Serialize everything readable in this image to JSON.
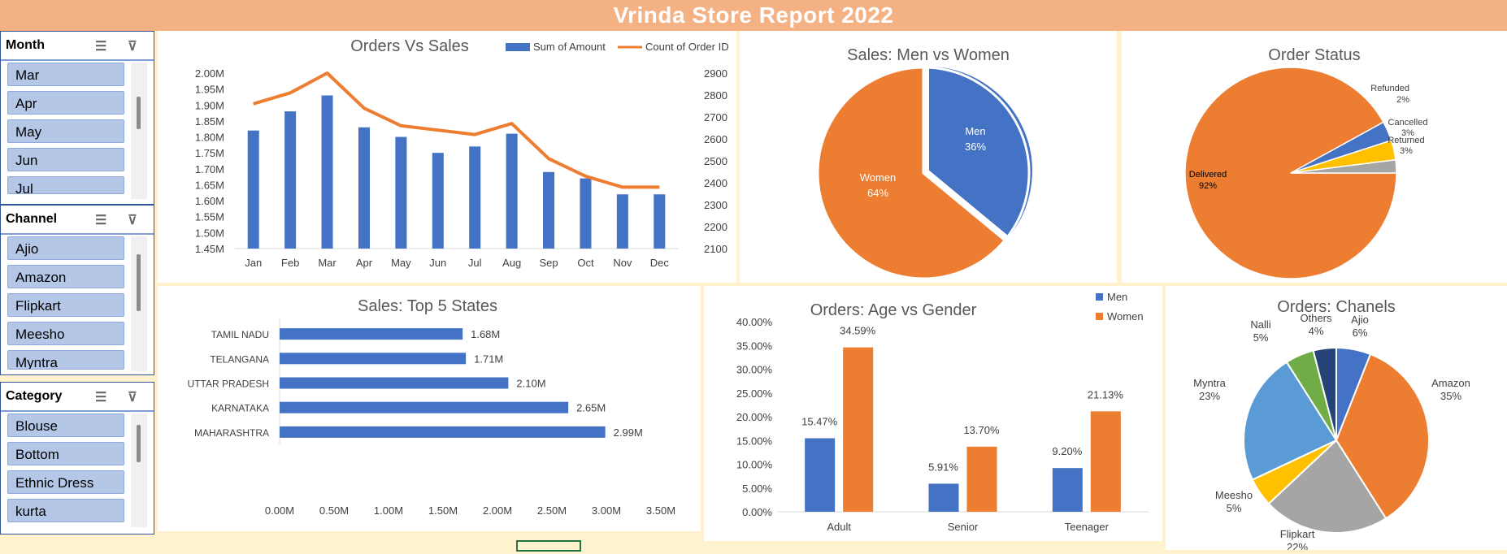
{
  "title": "Vrinda Store Report 2022",
  "slicers": [
    {
      "label": "Month",
      "items": [
        "Mar",
        "Apr",
        "May",
        "Jun",
        "Jul"
      ]
    },
    {
      "label": "Channel",
      "items": [
        "Ajio",
        "Amazon",
        "Flipkart",
        "Meesho",
        "Myntra"
      ]
    },
    {
      "label": "Category",
      "items": [
        "Blouse",
        "Bottom",
        "Ethnic Dress",
        "kurta"
      ]
    }
  ],
  "colors": {
    "blue": "#4472c4",
    "orange": "#ed7d31",
    "gray": "#a5a5a5",
    "yellow": "#ffc000",
    "lightblue": "#5b9bd5",
    "green": "#70ad47",
    "navy": "#264478"
  },
  "chart_data": [
    {
      "type": "bar",
      "title": "Orders Vs Sales",
      "categories": [
        "Jan",
        "Feb",
        "Mar",
        "Apr",
        "May",
        "Jun",
        "Jul",
        "Aug",
        "Sep",
        "Oct",
        "Nov",
        "Dec"
      ],
      "series": [
        {
          "name": "Sum of Amount",
          "type": "bar",
          "axis": "left",
          "values": [
            1.82,
            1.88,
            1.93,
            1.83,
            1.8,
            1.75,
            1.77,
            1.81,
            1.69,
            1.67,
            1.62,
            1.62
          ]
        },
        {
          "name": "Count of Order ID",
          "type": "line",
          "axis": "right",
          "values": [
            2760,
            2810,
            2900,
            2740,
            2660,
            2640,
            2620,
            2670,
            2510,
            2430,
            2380,
            2380
          ]
        }
      ],
      "y_left": {
        "range": [
          1.45,
          2.0
        ],
        "ticks": [
          "1.45M",
          "1.50M",
          "1.55M",
          "1.60M",
          "1.65M",
          "1.70M",
          "1.75M",
          "1.80M",
          "1.85M",
          "1.90M",
          "1.95M",
          "2.00M"
        ]
      },
      "y_right": {
        "range": [
          2100,
          2900
        ],
        "ticks": [
          "2100",
          "2200",
          "2300",
          "2400",
          "2500",
          "2600",
          "2700",
          "2800",
          "2900"
        ]
      },
      "legend": "top-right"
    },
    {
      "type": "pie",
      "title": "Sales: Men vs Women",
      "labels": [
        "Men",
        "Women"
      ],
      "values": [
        36,
        64
      ],
      "value_labels": [
        "36%",
        "64%"
      ]
    },
    {
      "type": "pie",
      "title": "Order Status",
      "labels": [
        "Delivered",
        "Returned",
        "Cancelled",
        "Refunded"
      ],
      "values": [
        92,
        3,
        3,
        2
      ],
      "value_labels": [
        "92%",
        "3%",
        "3%",
        "2%"
      ]
    },
    {
      "type": "bar",
      "orientation": "horizontal",
      "title": "Sales: Top 5 States",
      "categories": [
        "TAMIL NADU",
        "TELANGANA",
        "UTTAR PRADESH",
        "KARNATAKA",
        "MAHARASHTRA"
      ],
      "values": [
        1.68,
        1.71,
        2.1,
        2.65,
        2.99
      ],
      "value_labels": [
        "1.68M",
        "1.71M",
        "2.10M",
        "2.65M",
        "2.99M"
      ],
      "xlim": [
        0,
        3.5
      ],
      "x_ticks": [
        "0.00M",
        "0.50M",
        "1.00M",
        "1.50M",
        "2.00M",
        "2.50M",
        "3.00M",
        "3.50M"
      ]
    },
    {
      "type": "bar",
      "title": "Orders: Age vs Gender",
      "categories": [
        "Adult",
        "Senior",
        "Teenager"
      ],
      "series": [
        {
          "name": "Men",
          "values": [
            15.47,
            5.91,
            9.2
          ],
          "value_labels": [
            "15.47%",
            "5.91%",
            "9.20%"
          ]
        },
        {
          "name": "Women",
          "values": [
            34.59,
            13.7,
            21.13
          ],
          "value_labels": [
            "34.59%",
            "13.70%",
            "21.13%"
          ]
        }
      ],
      "ylim": [
        0,
        40
      ],
      "y_ticks": [
        "0.00%",
        "5.00%",
        "10.00%",
        "15.00%",
        "20.00%",
        "25.00%",
        "30.00%",
        "35.00%",
        "40.00%"
      ],
      "legend": "top-right"
    },
    {
      "type": "pie",
      "title": "Orders: Chanels",
      "labels": [
        "Ajio",
        "Amazon",
        "Flipkart",
        "Meesho",
        "Myntra",
        "Nalli",
        "Others"
      ],
      "values": [
        6,
        35,
        22,
        5,
        23,
        5,
        4
      ],
      "value_labels": [
        "6%",
        "35%",
        "22%",
        "5%",
        "23%",
        "5%",
        "4%"
      ]
    }
  ]
}
